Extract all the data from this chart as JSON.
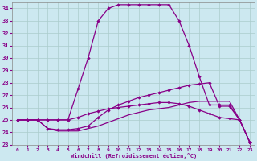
{
  "xlabel": "Windchill (Refroidissement éolien,°C)",
  "background_color": "#cce8f0",
  "grid_color": "#aacccc",
  "line_color": "#880088",
  "xlim": [
    -0.5,
    23.5
  ],
  "ylim": [
    23,
    34.5
  ],
  "yticks": [
    23,
    24,
    25,
    26,
    27,
    28,
    29,
    30,
    31,
    32,
    33,
    34
  ],
  "xticks": [
    0,
    1,
    2,
    3,
    4,
    5,
    6,
    7,
    8,
    9,
    10,
    11,
    12,
    13,
    14,
    15,
    16,
    17,
    18,
    19,
    20,
    21,
    22,
    23
  ],
  "series1_x": [
    0,
    1,
    2,
    3,
    4,
    5,
    6,
    7,
    8,
    9,
    10,
    11,
    12,
    13,
    14,
    15,
    16,
    17,
    18,
    19,
    20,
    21,
    22,
    23
  ],
  "series1_y": [
    25,
    25,
    25,
    25,
    25,
    25,
    27.5,
    30.0,
    33.0,
    34.0,
    34.3,
    34.3,
    34.3,
    34.3,
    34.3,
    34.3,
    33.0,
    31.0,
    28.5,
    26.2,
    26.2,
    26.2,
    25.0,
    23.2
  ],
  "series2_x": [
    0,
    1,
    2,
    3,
    4,
    5,
    6,
    7,
    8,
    9,
    10,
    11,
    12,
    13,
    14,
    15,
    16,
    17,
    18,
    19,
    20,
    21,
    22,
    23
  ],
  "series2_y": [
    25,
    25,
    25,
    24.3,
    24.2,
    24.2,
    24.3,
    24.5,
    25.2,
    25.8,
    26.2,
    26.5,
    26.8,
    27.0,
    27.2,
    27.4,
    27.6,
    27.8,
    27.9,
    28.0,
    26.1,
    26.1,
    25.0,
    23.2
  ],
  "series3_x": [
    0,
    1,
    2,
    3,
    4,
    5,
    6,
    7,
    8,
    9,
    10,
    11,
    12,
    13,
    14,
    15,
    16,
    17,
    18,
    19,
    20,
    21,
    22,
    23
  ],
  "series3_y": [
    25,
    25,
    25,
    25,
    25,
    25,
    25.2,
    25.5,
    25.7,
    25.9,
    26.0,
    26.1,
    26.2,
    26.3,
    26.4,
    26.4,
    26.3,
    26.1,
    25.8,
    25.5,
    25.2,
    25.1,
    25.0,
    23.2
  ],
  "series4_x": [
    0,
    1,
    2,
    3,
    4,
    5,
    6,
    7,
    8,
    9,
    10,
    11,
    12,
    13,
    14,
    15,
    16,
    17,
    18,
    19,
    20,
    21,
    22,
    23
  ],
  "series4_y": [
    25,
    25,
    25,
    24.3,
    24.1,
    24.1,
    24.1,
    24.3,
    24.5,
    24.8,
    25.1,
    25.4,
    25.6,
    25.8,
    25.9,
    26.0,
    26.2,
    26.4,
    26.5,
    26.5,
    26.5,
    26.5,
    25.0,
    23.2
  ]
}
